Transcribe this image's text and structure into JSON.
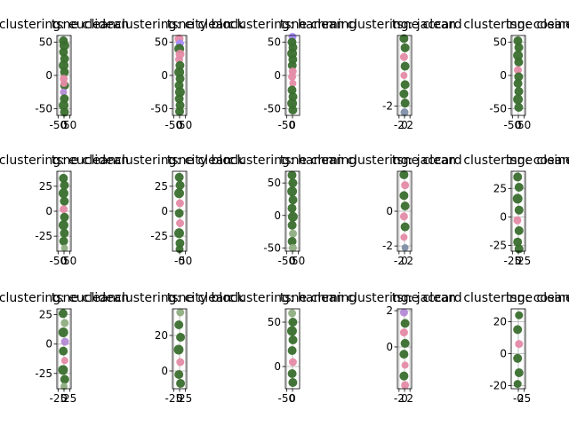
{
  "figure": {
    "background": "#ffffff",
    "grid": true,
    "colors": {
      "dark_green": "#3a6e2e",
      "light_green": "#8fae82",
      "pink": "#e58ba6",
      "purple": "#b48ad6",
      "violet": "#a78bfa",
      "gray_blue": "#7e8fa6"
    }
  },
  "chart_data": [
    {
      "type": "scatter",
      "title": "clustering: euclidean",
      "title_overlap": "tsne clean",
      "xlim": [
        -60,
        60
      ],
      "ylim": [
        -60,
        60
      ],
      "xticks": [
        -50,
        0,
        50
      ],
      "xtick_labels": [
        "-50",
        "0",
        "50"
      ],
      "yticks": [
        -50,
        0,
        50
      ],
      "ytick_labels": [
        "-50",
        "0",
        "50"
      ],
      "points": [
        [
          -5,
          52,
          "dark_green",
          10
        ],
        [
          3,
          45,
          "dark_green",
          11
        ],
        [
          -4,
          35,
          "dark_green",
          10
        ],
        [
          5,
          25,
          "dark_green",
          10
        ],
        [
          -3,
          15,
          "dark_green",
          11
        ],
        [
          4,
          5,
          "dark_green",
          10
        ],
        [
          -2,
          -5,
          "pink",
          9
        ],
        [
          5,
          -15,
          "dark_green",
          10
        ],
        [
          -4,
          -25,
          "purple",
          8
        ],
        [
          3,
          -35,
          "dark_green",
          10
        ],
        [
          -3,
          -45,
          "dark_green",
          11
        ],
        [
          4,
          -55,
          "dark_green",
          10
        ],
        [
          0,
          -12,
          "pink",
          8
        ]
      ]
    },
    {
      "type": "scatter",
      "title": "clustering: city block",
      "title_overlap": "tsne clean",
      "xlim": [
        -60,
        60
      ],
      "ylim": [
        -60,
        60
      ],
      "xticks": [
        -50,
        0,
        50
      ],
      "xtick_labels": [
        "-50",
        "0",
        "50"
      ],
      "yticks": [
        -50,
        0,
        50
      ],
      "ytick_labels": [
        "-50",
        "0",
        "50"
      ],
      "points": [
        [
          -4,
          55,
          "pink",
          10
        ],
        [
          3,
          48,
          "violet",
          9
        ],
        [
          -3,
          40,
          "dark_green",
          11
        ],
        [
          4,
          32,
          "pink",
          10
        ],
        [
          -4,
          24,
          "pink",
          9
        ],
        [
          3,
          15,
          "dark_green",
          10
        ],
        [
          -3,
          5,
          "dark_green",
          11
        ],
        [
          4,
          -5,
          "dark_green",
          10
        ],
        [
          -4,
          -15,
          "dark_green",
          10
        ],
        [
          3,
          -25,
          "dark_green",
          11
        ],
        [
          -3,
          -35,
          "dark_green",
          10
        ],
        [
          4,
          -45,
          "dark_green",
          10
        ],
        [
          0,
          -54,
          "dark_green",
          10
        ]
      ]
    },
    {
      "type": "scatter",
      "title": "clustering: hamming",
      "title_overlap": "tsne clean",
      "xlim": [
        -60,
        60
      ],
      "ylim": [
        -60,
        60
      ],
      "xticks": [
        -50,
        0
      ],
      "xtick_labels": [
        "-50",
        "0"
      ],
      "yticks": [
        -50,
        0,
        50
      ],
      "ytick_labels": [
        "-50",
        "0",
        "50"
      ],
      "points": [
        [
          0,
          58,
          "violet",
          9
        ],
        [
          -4,
          50,
          "dark_green",
          10
        ],
        [
          4,
          42,
          "dark_green",
          10
        ],
        [
          -3,
          33,
          "dark_green",
          11
        ],
        [
          3,
          24,
          "dark_green",
          10
        ],
        [
          -2,
          15,
          "dark_green",
          10
        ],
        [
          2,
          6,
          "pink",
          9
        ],
        [
          -3,
          -2,
          "pink",
          9
        ],
        [
          3,
          -12,
          "pink",
          8
        ],
        [
          -4,
          -22,
          "dark_green",
          10
        ],
        [
          4,
          -32,
          "dark_green",
          10
        ],
        [
          -3,
          -42,
          "dark_green",
          11
        ],
        [
          3,
          -52,
          "dark_green",
          10
        ]
      ]
    },
    {
      "type": "scatter",
      "title": "clustering: jaccard",
      "title_overlap": "tsne clean",
      "xlim": [
        -2.6,
        2.6
      ],
      "ylim": [
        -2.6,
        2.6
      ],
      "xticks": [
        -2,
        0,
        2
      ],
      "xtick_labels": [
        "-2",
        "0",
        "2"
      ],
      "yticks": [
        -2
      ],
      "ytick_labels": [
        "-2"
      ],
      "points": [
        [
          -0.2,
          2.4,
          "dark_green",
          10
        ],
        [
          0.2,
          1.8,
          "dark_green",
          10
        ],
        [
          -0.2,
          1.2,
          "pink",
          9
        ],
        [
          0.2,
          0.6,
          "dark_green",
          10
        ],
        [
          -0.2,
          0,
          "pink",
          8
        ],
        [
          0.2,
          -0.6,
          "dark_green",
          10
        ],
        [
          -0.2,
          -1.2,
          "dark_green",
          10
        ],
        [
          0.2,
          -1.8,
          "dark_green",
          10
        ],
        [
          0,
          -2.4,
          "gray_blue",
          9
        ]
      ]
    },
    {
      "type": "scatter",
      "title": "clustering: cosine",
      "title_overlap": "tsne clean",
      "xlim": [
        -60,
        60
      ],
      "ylim": [
        -60,
        60
      ],
      "xticks": [
        -50,
        0,
        50
      ],
      "xtick_labels": [
        "-50",
        "0",
        "50"
      ],
      "yticks": [
        -50,
        0,
        50
      ],
      "ytick_labels": [
        "-50",
        "0",
        "50"
      ],
      "points": [
        [
          -4,
          52,
          "dark_green",
          10
        ],
        [
          4,
          42,
          "dark_green",
          10
        ],
        [
          -3,
          30,
          "dark_green",
          11
        ],
        [
          3,
          20,
          "dark_green",
          10
        ],
        [
          -4,
          8,
          "pink",
          9
        ],
        [
          3,
          -2,
          "dark_green",
          10
        ],
        [
          -3,
          -12,
          "dark_green",
          10
        ],
        [
          4,
          -24,
          "dark_green",
          10
        ],
        [
          -3,
          -36,
          "dark_green",
          11
        ],
        [
          3,
          -48,
          "dark_green",
          10
        ]
      ]
    },
    {
      "type": "scatter",
      "title": "clustering: euclidean",
      "title_overlap": "tsne clean",
      "xlim": [
        -60,
        60
      ],
      "ylim": [
        -40,
        40
      ],
      "xticks": [
        -50,
        0,
        50
      ],
      "xtick_labels": [
        "-50",
        "0",
        "50"
      ],
      "yticks": [
        -25,
        0,
        25
      ],
      "ytick_labels": [
        "-25",
        "0",
        "25"
      ],
      "points": [
        [
          -5,
          33,
          "dark_green",
          10
        ],
        [
          4,
          26,
          "dark_green",
          10
        ],
        [
          -4,
          18,
          "dark_green",
          11
        ],
        [
          3,
          10,
          "dark_green",
          10
        ],
        [
          -3,
          2,
          "pink",
          9
        ],
        [
          4,
          -6,
          "dark_green",
          10
        ],
        [
          -4,
          -14,
          "dark_green",
          11
        ],
        [
          3,
          -22,
          "dark_green",
          10
        ],
        [
          -3,
          -30,
          "dark_green",
          10
        ],
        [
          4,
          -37,
          "light_green",
          8
        ]
      ]
    },
    {
      "type": "scatter",
      "title": "clustering: city block",
      "title_overlap": "tsne clean",
      "xlim": [
        -60,
        60
      ],
      "ylim": [
        -40,
        40
      ],
      "xticks": [
        0,
        50
      ],
      "xtick_labels": [
        "-0",
        "50"
      ],
      "yticks": [
        -25,
        0,
        25
      ],
      "ytick_labels": [
        "-25",
        "0",
        "25"
      ],
      "points": [
        [
          -3,
          34,
          "dark_green",
          10
        ],
        [
          4,
          26,
          "dark_green",
          10
        ],
        [
          -4,
          18,
          "dark_green",
          11
        ],
        [
          3,
          8,
          "pink",
          9
        ],
        [
          -3,
          -2,
          "dark_green",
          10
        ],
        [
          4,
          -12,
          "pink",
          9
        ],
        [
          -4,
          -22,
          "dark_green",
          11
        ],
        [
          3,
          -32,
          "dark_green",
          10
        ],
        [
          0,
          -38,
          "dark_green",
          9
        ]
      ]
    },
    {
      "type": "scatter",
      "title": "clustering: hamming",
      "title_overlap": "tsne clean",
      "xlim": [
        -60,
        60
      ],
      "ylim": [
        -55,
        68
      ],
      "xticks": [
        -50,
        0,
        50
      ],
      "xtick_labels": [
        "-50",
        "0",
        "50"
      ],
      "yticks": [
        -50,
        0,
        50
      ],
      "ytick_labels": [
        "-50",
        "0",
        "50"
      ],
      "points": [
        [
          -4,
          62,
          "dark_green",
          10
        ],
        [
          3,
          50,
          "dark_green",
          10
        ],
        [
          -3,
          37,
          "dark_green",
          11
        ],
        [
          4,
          24,
          "dark_green",
          10
        ],
        [
          -4,
          11,
          "dark_green",
          10
        ],
        [
          3,
          -2,
          "dark_green",
          11
        ],
        [
          -3,
          -15,
          "dark_green",
          10
        ],
        [
          4,
          -28,
          "light_green",
          9
        ],
        [
          -3,
          -40,
          "dark_green",
          10
        ],
        [
          3,
          -50,
          "light_green",
          9
        ]
      ]
    },
    {
      "type": "scatter",
      "title": "clustering: jaccard",
      "title_overlap": "tsne clean",
      "xlim": [
        -2.6,
        2.6
      ],
      "ylim": [
        -2.3,
        2.3
      ],
      "xticks": [
        -2,
        0,
        2
      ],
      "xtick_labels": [
        "-2",
        "0",
        "2"
      ],
      "yticks": [
        -2,
        0
      ],
      "ytick_labels": [
        "-2",
        "0"
      ],
      "points": [
        [
          -0.2,
          2.1,
          "dark_green",
          10
        ],
        [
          0.2,
          1.5,
          "pink",
          9
        ],
        [
          -0.2,
          0.9,
          "dark_green",
          10
        ],
        [
          0.2,
          0.3,
          "dark_green",
          10
        ],
        [
          -0.2,
          -0.3,
          "pink",
          9
        ],
        [
          0.2,
          -0.9,
          "dark_green",
          10
        ],
        [
          -0.2,
          -1.5,
          "pink",
          8
        ],
        [
          0.2,
          -2.1,
          "gray_blue",
          8
        ]
      ]
    },
    {
      "type": "scatter",
      "title": "clustering: cosine",
      "title_overlap": "tsne clean",
      "xlim": [
        -30,
        30
      ],
      "ylim": [
        -30,
        40
      ],
      "xticks": [
        -25,
        0,
        25
      ],
      "xtick_labels": [
        "-25",
        "0",
        "25"
      ],
      "yticks": [
        -25,
        0,
        25
      ],
      "ytick_labels": [
        "-25",
        "0",
        "25"
      ],
      "points": [
        [
          -3,
          35,
          "dark_green",
          10
        ],
        [
          3,
          26,
          "dark_green",
          10
        ],
        [
          -3,
          16,
          "dark_green",
          11
        ],
        [
          3,
          6,
          "dark_green",
          10
        ],
        [
          -4,
          -3,
          "pink",
          9
        ],
        [
          3,
          -12,
          "dark_green",
          10
        ],
        [
          -3,
          -22,
          "dark_green",
          10
        ],
        [
          3,
          -28,
          "dark_green",
          10
        ]
      ]
    },
    {
      "type": "scatter",
      "title": "clustering: euclidean",
      "title_overlap": "tsne clean",
      "xlim": [
        -30,
        30
      ],
      "ylim": [
        -38,
        30
      ],
      "xticks": [
        -25,
        0,
        25
      ],
      "xtick_labels": [
        "-25",
        "0",
        "25"
      ],
      "yticks": [
        -25,
        0,
        25
      ],
      "ytick_labels": [
        "-25",
        "0",
        "25"
      ],
      "points": [
        [
          -4,
          26,
          "dark_green",
          10
        ],
        [
          3,
          18,
          "light_green",
          9
        ],
        [
          -3,
          10,
          "dark_green",
          11
        ],
        [
          4,
          2,
          "purple",
          9
        ],
        [
          -3,
          -6,
          "dark_green",
          10
        ],
        [
          3,
          -14,
          "pink",
          8
        ],
        [
          -4,
          -22,
          "dark_green",
          11
        ],
        [
          3,
          -30,
          "dark_green",
          10
        ],
        [
          0,
          -36,
          "light_green",
          8
        ]
      ]
    },
    {
      "type": "scatter",
      "title": "clustering: city block",
      "title_overlap": "tsne clean",
      "xlim": [
        -30,
        30
      ],
      "ylim": [
        -10,
        35
      ],
      "xticks": [
        -25,
        0,
        25
      ],
      "xtick_labels": [
        "-25",
        "0",
        "25"
      ],
      "yticks": [
        0,
        20
      ],
      "ytick_labels": [
        "0",
        "20"
      ],
      "points": [
        [
          3,
          33,
          "light_green",
          9
        ],
        [
          -3,
          26,
          "dark_green",
          10
        ],
        [
          4,
          19,
          "dark_green",
          10
        ],
        [
          -4,
          12,
          "dark_green",
          11
        ],
        [
          3,
          5,
          "pink",
          9
        ],
        [
          -3,
          -2,
          "dark_green",
          10
        ],
        [
          4,
          -7,
          "dark_green",
          10
        ]
      ]
    },
    {
      "type": "scatter",
      "title": "clustering: hamming",
      "title_overlap": "tsne clean",
      "xlim": [
        -60,
        60
      ],
      "ylim": [
        -25,
        65
      ],
      "xticks": [
        -50,
        0
      ],
      "xtick_labels": [
        "-50",
        "0"
      ],
      "yticks": [
        0,
        50
      ],
      "ytick_labels": [
        "0",
        "50"
      ],
      "points": [
        [
          -3,
          60,
          "light_green",
          9
        ],
        [
          3,
          50,
          "dark_green",
          10
        ],
        [
          -4,
          40,
          "dark_green",
          11
        ],
        [
          4,
          30,
          "dark_green",
          10
        ],
        [
          -3,
          18,
          "dark_green",
          10
        ],
        [
          3,
          5,
          "pink",
          9
        ],
        [
          -3,
          -8,
          "dark_green",
          10
        ],
        [
          3,
          -18,
          "dark_green",
          10
        ]
      ]
    },
    {
      "type": "scatter",
      "title": "clustering: jaccard",
      "title_overlap": "tsne clean",
      "xlim": [
        -2.6,
        2.6
      ],
      "ylim": [
        -2.3,
        2.1
      ],
      "xticks": [
        -2,
        0,
        2
      ],
      "xtick_labels": [
        "-2",
        "0",
        "2"
      ],
      "yticks": [
        0,
        2
      ],
      "ytick_labels": [
        "0",
        "2"
      ],
      "points": [
        [
          -0.2,
          1.9,
          "purple",
          9
        ],
        [
          0.2,
          1.3,
          "dark_green",
          10
        ],
        [
          -0.2,
          0.8,
          "pink",
          9
        ],
        [
          0.2,
          0.2,
          "dark_green",
          10
        ],
        [
          -0.2,
          -0.4,
          "dark_green",
          10
        ],
        [
          0.2,
          -1.0,
          "pink",
          8
        ],
        [
          -0.2,
          -1.6,
          "dark_green",
          10
        ],
        [
          0.2,
          -2.1,
          "pink",
          9
        ]
      ]
    },
    {
      "type": "scatter",
      "title": "clustering: cosine",
      "title_overlap": "tsne clean",
      "xlim": [
        -30,
        30
      ],
      "ylim": [
        -22,
        28
      ],
      "xticks": [
        0,
        25
      ],
      "xtick_labels": [
        "-0",
        "25"
      ],
      "yticks": [
        -20,
        0,
        20
      ],
      "ytick_labels": [
        "-20",
        "0",
        "20"
      ],
      "points": [
        [
          3,
          24,
          "dark_green",
          9
        ],
        [
          -3,
          15,
          "dark_green",
          10
        ],
        [
          3,
          6,
          "pink",
          9
        ],
        [
          -3,
          -3,
          "dark_green",
          10
        ],
        [
          3,
          -12,
          "dark_green",
          10
        ],
        [
          -3,
          -19,
          "dark_green",
          9
        ]
      ]
    }
  ]
}
